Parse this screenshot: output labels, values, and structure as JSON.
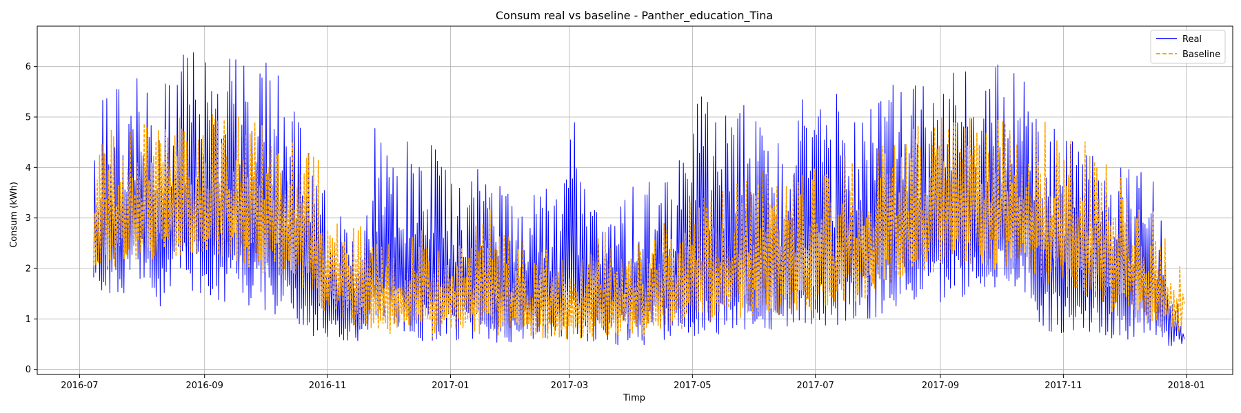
{
  "chart_data": {
    "type": "line",
    "title": "Consum real vs baseline - Panther_education_Tina",
    "xlabel": "Timp",
    "ylabel": "Consum (kWh)",
    "x_range": [
      "2016-06-10",
      "2018-01-24"
    ],
    "ylim": [
      -0.1,
      6.8
    ],
    "x_ticks": [
      "2016-07",
      "2016-09",
      "2016-11",
      "2017-01",
      "2017-03",
      "2017-05",
      "2017-07",
      "2017-09",
      "2017-11",
      "2018-01"
    ],
    "y_ticks": [
      0,
      1,
      2,
      3,
      4,
      5,
      6
    ],
    "grid": true,
    "legend_position": "top-right",
    "series_style": {
      "real": {
        "color": "#0000ff",
        "dash": "solid"
      },
      "baseline": {
        "color": "#ffa500",
        "dash": "dashed"
      }
    },
    "series": [
      {
        "name": "Real",
        "note_resolution": "weekly-bin min/max envelope of hourly readings",
        "x": [
          "2016-07-08",
          "2016-07-15",
          "2016-07-22",
          "2016-07-29",
          "2016-08-05",
          "2016-08-12",
          "2016-08-19",
          "2016-08-26",
          "2016-09-02",
          "2016-09-09",
          "2016-09-16",
          "2016-09-23",
          "2016-09-30",
          "2016-10-07",
          "2016-10-14",
          "2016-10-21",
          "2016-10-28",
          "2016-11-04",
          "2016-11-11",
          "2016-11-18",
          "2016-11-25",
          "2016-12-02",
          "2016-12-09",
          "2016-12-16",
          "2016-12-23",
          "2016-12-30",
          "2017-01-06",
          "2017-01-13",
          "2017-01-20",
          "2017-01-27",
          "2017-02-03",
          "2017-02-10",
          "2017-02-17",
          "2017-02-24",
          "2017-03-03",
          "2017-03-10",
          "2017-03-17",
          "2017-03-24",
          "2017-03-31",
          "2017-04-07",
          "2017-04-14",
          "2017-04-21",
          "2017-04-28",
          "2017-05-05",
          "2017-05-12",
          "2017-05-19",
          "2017-05-26",
          "2017-06-02",
          "2017-06-09",
          "2017-06-16",
          "2017-06-23",
          "2017-06-30",
          "2017-07-07",
          "2017-07-14",
          "2017-07-21",
          "2017-07-28",
          "2017-08-04",
          "2017-08-11",
          "2017-08-18",
          "2017-08-25",
          "2017-09-01",
          "2017-09-08",
          "2017-09-15",
          "2017-09-22",
          "2017-09-29",
          "2017-10-06",
          "2017-10-13",
          "2017-10-20",
          "2017-10-27",
          "2017-11-03",
          "2017-11-10",
          "2017-11-17",
          "2017-11-24",
          "2017-12-01",
          "2017-12-08",
          "2017-12-15",
          "2017-12-22",
          "2017-12-31"
        ],
        "low": [
          1.5,
          1.2,
          1.0,
          1.6,
          1.4,
          0.8,
          1.5,
          1.3,
          1.2,
          1.0,
          0.9,
          0.9,
          0.8,
          0.7,
          0.6,
          0.5,
          0.4,
          0.4,
          0.4,
          0.4,
          0.4,
          0.5,
          0.4,
          0.4,
          0.3,
          0.3,
          0.4,
          0.3,
          0.3,
          0.3,
          0.4,
          0.4,
          0.4,
          0.3,
          0.3,
          0.3,
          0.4,
          0.3,
          0.4,
          0.3,
          0.4,
          0.3,
          0.4,
          0.3,
          0.4,
          0.5,
          0.5,
          0.5,
          0.5,
          0.4,
          0.6,
          0.6,
          0.6,
          0.6,
          0.7,
          0.7,
          0.8,
          1.0,
          1.0,
          1.2,
          1.0,
          1.2,
          1.2,
          1.3,
          1.3,
          1.4,
          1.3,
          0.6,
          0.5,
          0.5,
          0.5,
          0.5,
          0.4,
          0.4,
          0.4,
          0.3,
          0.3,
          0.5
        ],
        "high": [
          5.2,
          5.5,
          5.9,
          6.1,
          5.6,
          5.8,
          6.3,
          6.4,
          6.3,
          6.2,
          6.4,
          6.3,
          6.2,
          6.4,
          5.3,
          4.5,
          3.9,
          3.2,
          2.9,
          2.4,
          5.4,
          5.2,
          4.8,
          4.1,
          4.7,
          4.0,
          3.6,
          4.4,
          3.5,
          3.7,
          3.2,
          3.6,
          3.7,
          3.3,
          5.2,
          3.4,
          3.0,
          3.2,
          3.6,
          3.7,
          4.2,
          4.5,
          4.8,
          5.8,
          5.3,
          5.0,
          5.5,
          5.1,
          4.8,
          4.8,
          5.5,
          5.0,
          5.4,
          5.6,
          5.5,
          5.6,
          5.7,
          5.7,
          5.8,
          5.7,
          5.9,
          6.0,
          5.9,
          6.0,
          6.2,
          6.0,
          5.8,
          5.0,
          4.8,
          4.6,
          4.7,
          4.5,
          4.0,
          4.1,
          4.0,
          4.1,
          2.6,
          0.7
        ]
      },
      {
        "name": "Baseline",
        "note_resolution": "weekly-bin min/max envelope of hourly readings",
        "x": [
          "2016-07-08",
          "2016-07-15",
          "2016-07-22",
          "2016-07-29",
          "2016-08-05",
          "2016-08-12",
          "2016-08-19",
          "2016-08-26",
          "2016-09-02",
          "2016-09-09",
          "2016-09-16",
          "2016-09-23",
          "2016-09-30",
          "2016-10-07",
          "2016-10-14",
          "2016-10-21",
          "2016-10-28",
          "2016-11-04",
          "2016-11-11",
          "2016-11-18",
          "2016-11-25",
          "2016-12-02",
          "2016-12-09",
          "2016-12-16",
          "2016-12-23",
          "2016-12-30",
          "2017-01-06",
          "2017-01-13",
          "2017-01-20",
          "2017-01-27",
          "2017-02-03",
          "2017-02-10",
          "2017-02-17",
          "2017-02-24",
          "2017-03-03",
          "2017-03-10",
          "2017-03-17",
          "2017-03-24",
          "2017-03-31",
          "2017-04-07",
          "2017-04-14",
          "2017-04-21",
          "2017-04-28",
          "2017-05-05",
          "2017-05-12",
          "2017-05-19",
          "2017-05-26",
          "2017-06-02",
          "2017-06-09",
          "2017-06-16",
          "2017-06-23",
          "2017-06-30",
          "2017-07-07",
          "2017-07-14",
          "2017-07-21",
          "2017-07-28",
          "2017-08-04",
          "2017-08-11",
          "2017-08-18",
          "2017-08-25",
          "2017-09-01",
          "2017-09-08",
          "2017-09-15",
          "2017-09-22",
          "2017-09-29",
          "2017-10-06",
          "2017-10-13",
          "2017-10-20",
          "2017-10-27",
          "2017-11-03",
          "2017-11-10",
          "2017-11-17",
          "2017-11-24",
          "2017-12-01",
          "2017-12-08",
          "2017-12-15",
          "2017-12-22",
          "2017-12-31"
        ],
        "low": [
          1.7,
          1.8,
          1.9,
          2.0,
          2.0,
          2.1,
          2.0,
          2.0,
          2.0,
          1.9,
          1.9,
          1.8,
          1.7,
          1.6,
          1.4,
          1.2,
          1.0,
          0.9,
          0.8,
          0.7,
          0.7,
          0.6,
          0.6,
          0.6,
          0.5,
          0.6,
          0.5,
          0.5,
          0.6,
          0.5,
          0.5,
          0.5,
          0.5,
          0.5,
          0.5,
          0.5,
          0.5,
          0.5,
          0.6,
          0.5,
          0.6,
          0.6,
          0.7,
          0.7,
          0.8,
          0.8,
          0.8,
          0.9,
          0.9,
          0.9,
          1.0,
          1.0,
          1.0,
          1.1,
          1.1,
          1.2,
          1.4,
          1.5,
          1.6,
          1.7,
          1.8,
          1.8,
          1.8,
          1.8,
          1.8,
          1.8,
          1.7,
          1.6,
          1.4,
          1.3,
          1.2,
          1.1,
          1.0,
          0.9,
          0.8,
          0.7,
          0.6,
          0.6
        ],
        "high": [
          4.4,
          4.7,
          4.9,
          5.0,
          5.0,
          5.1,
          5.2,
          5.3,
          5.2,
          5.2,
          5.3,
          5.2,
          5.4,
          5.3,
          5.0,
          4.6,
          4.3,
          3.8,
          3.3,
          2.9,
          2.6,
          2.5,
          2.6,
          2.8,
          2.7,
          2.9,
          2.5,
          3.0,
          3.6,
          2.7,
          2.6,
          2.5,
          2.4,
          2.2,
          2.2,
          2.4,
          2.9,
          2.2,
          2.4,
          2.6,
          2.8,
          3.1,
          3.3,
          3.4,
          3.6,
          3.7,
          3.9,
          4.0,
          3.9,
          3.8,
          3.9,
          4.0,
          4.1,
          4.2,
          4.4,
          4.5,
          4.6,
          4.7,
          4.8,
          4.9,
          5.0,
          5.1,
          5.3,
          5.2,
          5.1,
          5.2,
          5.1,
          5.0,
          4.9,
          4.8,
          4.6,
          4.3,
          4.1,
          3.8,
          3.5,
          3.2,
          2.9,
          2.0
        ]
      }
    ]
  }
}
